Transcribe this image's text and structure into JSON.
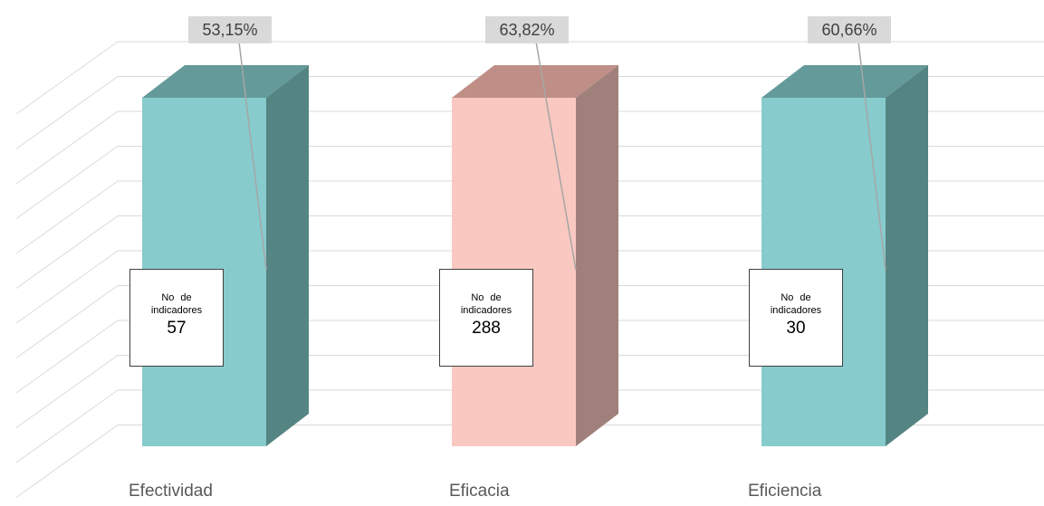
{
  "chart_data": {
    "type": "bar",
    "categories": [
      "Efectividad",
      "Eficacia",
      "Eficiencia"
    ],
    "percent_labels": [
      "53,15%",
      "63,82%",
      "60,66%"
    ],
    "count_caption": "No de indicadores",
    "count_values": [
      "57",
      "288",
      "30"
    ],
    "values": [
      57,
      288,
      30
    ],
    "three_d": true,
    "grid": true,
    "colors": {
      "Efectividad": {
        "front": "#87cbcc",
        "side": "#548582",
        "top": "#649a99"
      },
      "Eficacia": {
        "front": "#f9c8c1",
        "side": "#a0807a",
        "top": "#bf8f87"
      },
      "Eficiencia": {
        "front": "#87cbcc",
        "side": "#548582",
        "top": "#649a99"
      }
    }
  }
}
